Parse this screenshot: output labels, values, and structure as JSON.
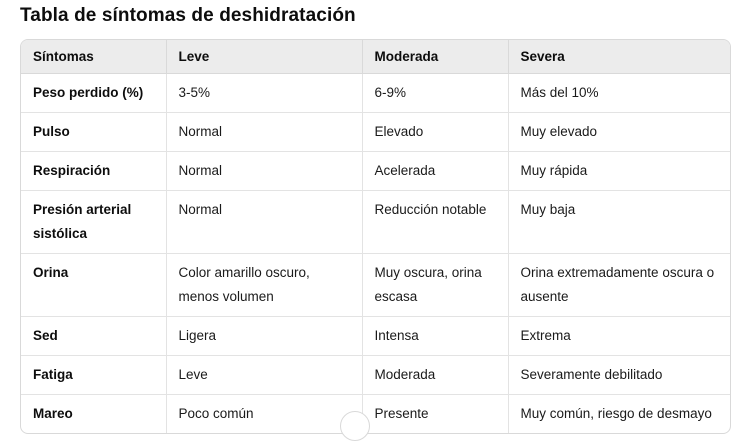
{
  "title": "Tabla de síntomas de deshidratación",
  "table": {
    "headers": [
      "Síntomas",
      "Leve",
      "Moderada",
      "Severa"
    ],
    "rows": [
      [
        "Peso perdido (%)",
        "3-5%",
        "6-9%",
        "Más del 10%"
      ],
      [
        "Pulso",
        "Normal",
        "Elevado",
        "Muy elevado"
      ],
      [
        "Respiración",
        "Normal",
        "Acelerada",
        "Muy rápida"
      ],
      [
        "Presión arterial sistólica",
        "Normal",
        "Reducción notable",
        "Muy baja"
      ],
      [
        "Orina",
        "Color amarillo oscuro, menos volumen",
        "Muy oscura, orina escasa",
        "Orina extremadamente oscura o ausente"
      ],
      [
        "Sed",
        "Ligera",
        "Intensa",
        "Extrema"
      ],
      [
        "Fatiga",
        "Leve",
        "Moderada",
        "Severamente debilitado"
      ],
      [
        "Mareo",
        "Poco común",
        "Presente",
        "Muy común, riesgo de desmayo"
      ]
    ]
  },
  "scroll_button_icon": "chevron-down-icon"
}
